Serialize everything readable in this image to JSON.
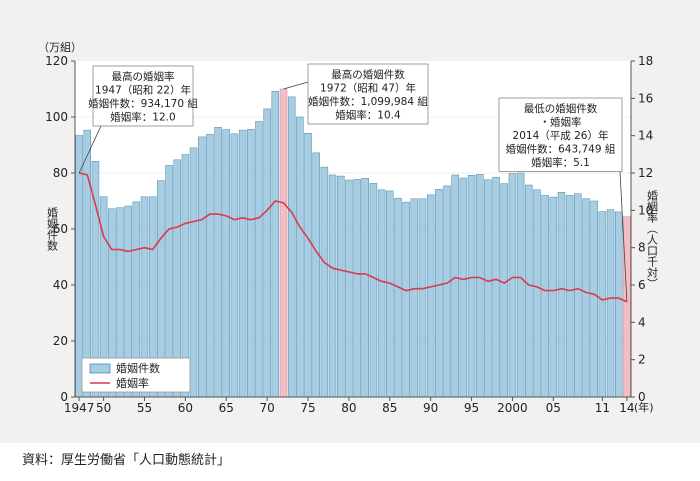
{
  "source": "資料：厚生労働省「人口動態統計」",
  "chart_data": {
    "type": "bar+line",
    "left_axis": {
      "unit": "（万組）",
      "label": "婚姻件数",
      "lim": [
        0,
        120
      ],
      "ticks": [
        "0",
        "20",
        "40",
        "60",
        "80",
        "100",
        "120"
      ]
    },
    "right_axis": {
      "label": "婚姻率（人口千対）",
      "lim": [
        0,
        18
      ],
      "ticks": [
        "0",
        "2",
        "4",
        "6",
        "8",
        "10",
        "12",
        "14",
        "16",
        "18"
      ]
    },
    "x_axis": {
      "unit": "(年)",
      "ticks": [
        {
          "year": 1947,
          "label": "1947"
        },
        {
          "year": 1950,
          "label": "50"
        },
        {
          "year": 1955,
          "label": "55"
        },
        {
          "year": 1960,
          "label": "60"
        },
        {
          "year": 1965,
          "label": "65"
        },
        {
          "year": 1970,
          "label": "70"
        },
        {
          "year": 1975,
          "label": "75"
        },
        {
          "year": 1980,
          "label": "80"
        },
        {
          "year": 1985,
          "label": "85"
        },
        {
          "year": 1990,
          "label": "90"
        },
        {
          "year": 1995,
          "label": "95"
        },
        {
          "year": 2000,
          "label": "2000"
        },
        {
          "year": 2005,
          "label": "05"
        },
        {
          "year": 2011,
          "label": "11"
        },
        {
          "year": 2014,
          "label": "14"
        }
      ]
    },
    "legend": {
      "bar": "婚姻件数",
      "line": "婚姻率",
      "position": "bottom-left"
    },
    "colors": {
      "bar": "#a6cde2",
      "bar_highlight": "#f4bcc4",
      "bar_stroke": "#4d88ad",
      "line": "#d93a4c",
      "plot_bg": "#ffffff"
    },
    "highlight_years": [
      1972,
      2014
    ],
    "years": [
      1947,
      1948,
      1949,
      1950,
      1951,
      1952,
      1953,
      1954,
      1955,
      1956,
      1957,
      1958,
      1959,
      1960,
      1961,
      1962,
      1963,
      1964,
      1965,
      1966,
      1967,
      1968,
      1969,
      1970,
      1971,
      1972,
      1973,
      1974,
      1975,
      1976,
      1977,
      1978,
      1979,
      1980,
      1981,
      1982,
      1983,
      1984,
      1985,
      1986,
      1987,
      1988,
      1989,
      1990,
      1991,
      1992,
      1993,
      1994,
      1995,
      1996,
      1997,
      1998,
      1999,
      2000,
      2001,
      2002,
      2003,
      2004,
      2005,
      2006,
      2007,
      2008,
      2009,
      2010,
      2011,
      2012,
      2013,
      2014
    ],
    "marriages": [
      93.4,
      95.3,
      84.2,
      71.5,
      67.2,
      67.6,
      68.2,
      69.7,
      71.5,
      71.5,
      77.3,
      82.7,
      84.7,
      86.6,
      89.0,
      92.9,
      93.8,
      96.3,
      95.5,
      94.0,
      95.3,
      95.6,
      98.4,
      102.9,
      109.2,
      110.0,
      107.2,
      100.0,
      94.2,
      87.2,
      82.1,
      79.3,
      78.9,
      77.5,
      77.7,
      78.1,
      76.3,
      74.0,
      73.6,
      71.0,
      69.6,
      70.8,
      70.8,
      72.2,
      74.2,
      75.4,
      79.3,
      78.2,
      79.2,
      79.5,
      77.6,
      78.5,
      76.2,
      79.8,
      80.0,
      75.7,
      74.0,
      72.0,
      71.4,
      73.1,
      72.0,
      72.6,
      70.8,
      70.0,
      66.2,
      66.9,
      66.1,
      64.4
    ],
    "rate": [
      12.0,
      11.9,
      10.3,
      8.6,
      7.9,
      7.9,
      7.8,
      7.9,
      8.0,
      7.9,
      8.5,
      9.0,
      9.1,
      9.3,
      9.4,
      9.5,
      9.8,
      9.8,
      9.7,
      9.5,
      9.6,
      9.5,
      9.6,
      10.0,
      10.5,
      10.4,
      9.9,
      9.1,
      8.5,
      7.8,
      7.2,
      6.9,
      6.8,
      6.7,
      6.6,
      6.6,
      6.4,
      6.2,
      6.1,
      5.9,
      5.7,
      5.8,
      5.8,
      5.9,
      6.0,
      6.1,
      6.4,
      6.3,
      6.4,
      6.4,
      6.2,
      6.3,
      6.1,
      6.4,
      6.4,
      6.0,
      5.9,
      5.7,
      5.7,
      5.8,
      5.7,
      5.8,
      5.6,
      5.5,
      5.2,
      5.3,
      5.3,
      5.1
    ],
    "annotations": [
      {
        "year": 1947,
        "lines": [
          "最高の婚姻率",
          "1947（昭和 22）年",
          "婚姻件数：934,170 組",
          "婚姻率：12.0"
        ]
      },
      {
        "year": 1972,
        "lines": [
          "最高の婚姻件数",
          "1972（昭和 47）年",
          "婚姻件数：1,099,984 組",
          "婚姻率：10.4"
        ]
      },
      {
        "year": 2014,
        "lines": [
          "最低の婚姻件数",
          "・婚姻率",
          "2014（平成 26）年",
          "婚姻件数：643,749 組",
          "婚姻率：5.1"
        ]
      }
    ]
  }
}
